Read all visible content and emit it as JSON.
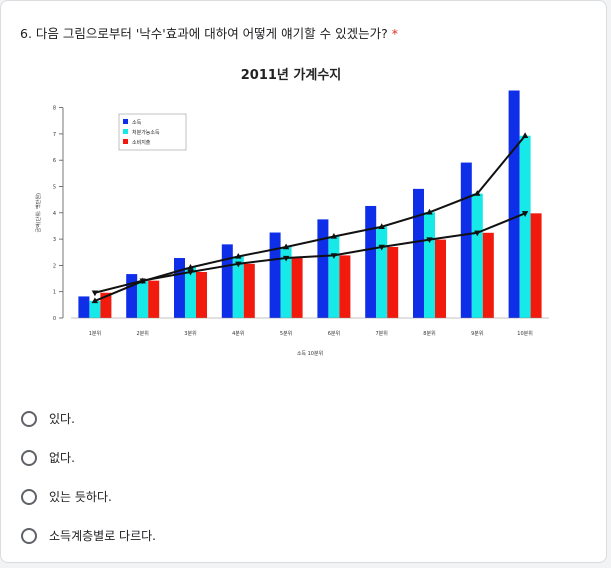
{
  "question": {
    "text": "6. 다음 그림으로부터 '낙수'효과에 대하여 어떻게 얘기할 수 있겠는가?",
    "required_mark": "*"
  },
  "options": [
    {
      "label": "있다."
    },
    {
      "label": "없다."
    },
    {
      "label": "있는 듯하다."
    },
    {
      "label": "소득계층별로 다르다."
    }
  ],
  "chart_data": {
    "type": "bar",
    "title": "2011년 가계수지",
    "xlabel": "소득 10분위",
    "ylabel": "금액(단위: 백만원)",
    "categories": [
      "1분위",
      "2분위",
      "3분위",
      "4분위",
      "5분위",
      "6분위",
      "7분위",
      "8분위",
      "9분위",
      "10분위"
    ],
    "ylim": [
      0,
      8.6
    ],
    "yticks": [
      0,
      1,
      2,
      3,
      4,
      5,
      6,
      7,
      8
    ],
    "legend_position": "top-left",
    "series": [
      {
        "name": "소득",
        "color": "#0f2ee8",
        "values": [
          0.82,
          1.67,
          2.28,
          2.8,
          3.25,
          3.75,
          4.26,
          4.91,
          5.91,
          8.65
        ]
      },
      {
        "name": "처분가능소득",
        "color": "#17e8e8",
        "values": [
          0.65,
          1.4,
          1.92,
          2.34,
          2.7,
          3.1,
          3.47,
          4.02,
          4.73,
          6.93
        ]
      },
      {
        "name": "소비지출",
        "color": "#f21a0c",
        "values": [
          0.96,
          1.42,
          1.75,
          2.06,
          2.28,
          2.38,
          2.7,
          2.98,
          3.24,
          3.98
        ]
      }
    ],
    "lines": [
      {
        "name": "처분가능소득",
        "marker": "triangle-up",
        "values": [
          0.65,
          1.4,
          1.92,
          2.34,
          2.7,
          3.1,
          3.47,
          4.02,
          4.73,
          6.93
        ]
      },
      {
        "name": "소비지출",
        "marker": "triangle-down",
        "values": [
          0.96,
          1.42,
          1.75,
          2.06,
          2.28,
          2.38,
          2.7,
          2.98,
          3.24,
          3.98
        ]
      }
    ]
  }
}
